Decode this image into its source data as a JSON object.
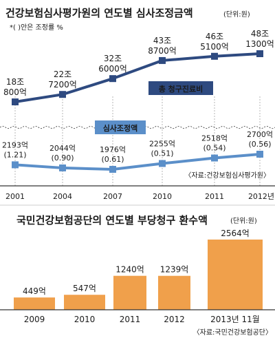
{
  "chart_data": [
    {
      "type": "line",
      "title": "건강보험심사평가원의 연도별 심사조정금액",
      "unit": "(단위:원)",
      "note": "*( )안은 조정률 %",
      "x": [
        "2001",
        "2004",
        "2007",
        "2010",
        "2011",
        "2012년"
      ],
      "series": [
        {
          "name": "총 청구진료비",
          "values": [
            18.08,
            22.72,
            32.6,
            43.87,
            46.51,
            48.13
          ],
          "labels": [
            [
              "18조",
              "800억"
            ],
            [
              "22조",
              "7200억"
            ],
            [
              "32조",
              "6000억"
            ],
            [
              "43조",
              "8700억"
            ],
            [
              "46조",
              "5100억"
            ],
            [
              "48조",
              "1300억"
            ]
          ],
          "color": "#2e4a80"
        },
        {
          "name": "심사조정액",
          "values": [
            2193,
            2044,
            1976,
            2255,
            2518,
            2700
          ],
          "labels": [
            [
              "2193억",
              "(1.21)"
            ],
            [
              "2044억",
              "(0.90)"
            ],
            [
              "1976억",
              "(0.61)"
            ],
            [
              "2255억",
              "(0.51)"
            ],
            [
              "2518억",
              "(0.54)"
            ],
            [
              "2700억",
              "(0.56)"
            ]
          ],
          "color": "#5b8fc9"
        }
      ],
      "source": "자료:건강보험심사평가원"
    },
    {
      "type": "bar",
      "title": "국민건강보험공단의 연도별 부당청구 환수액",
      "unit": "(단위:원)",
      "categories": [
        "2009",
        "2010",
        "2011",
        "2012",
        "2013년 11월"
      ],
      "values": [
        449,
        547,
        1240,
        1239,
        2564
      ],
      "value_labels": [
        "449억",
        "547억",
        "1240억",
        "1239억",
        "2564억"
      ],
      "bar_color": "#f0a04b",
      "source": "자료:국민건강보험공단"
    }
  ]
}
